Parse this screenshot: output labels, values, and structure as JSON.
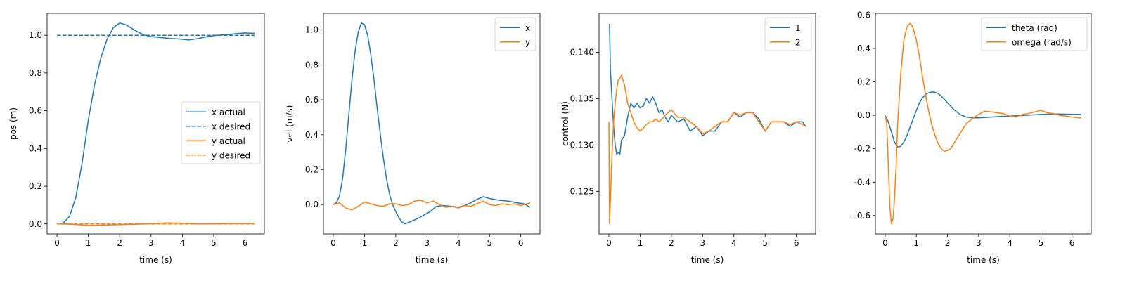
{
  "colors": {
    "blue": "#1f77b4",
    "orange": "#ff7f0e"
  },
  "chart_data": [
    {
      "type": "line",
      "xlabel": "time (s)",
      "ylabel": "pos (m)",
      "xlim": [
        -0.315,
        6.615
      ],
      "ylim": [
        -0.053,
        1.116
      ],
      "xticks": [
        0,
        1,
        2,
        3,
        4,
        5,
        6
      ],
      "yticks": [
        0.0,
        0.2,
        0.4,
        0.6,
        0.8,
        1.0
      ],
      "legend_position": "center-right",
      "series": [
        {
          "name": "x actual",
          "color": "#1f77b4",
          "dash": "solid",
          "x": [
            0,
            0.2,
            0.4,
            0.6,
            0.8,
            1.0,
            1.2,
            1.4,
            1.6,
            1.8,
            2.0,
            2.2,
            2.4,
            2.6,
            2.8,
            3.0,
            3.3,
            3.6,
            3.9,
            4.2,
            4.5,
            4.8,
            5.1,
            5.4,
            5.7,
            6.0,
            6.3
          ],
          "y": [
            0.0,
            0.005,
            0.04,
            0.14,
            0.32,
            0.55,
            0.74,
            0.88,
            0.98,
            1.04,
            1.065,
            1.055,
            1.035,
            1.015,
            1.0,
            0.993,
            0.988,
            0.983,
            0.98,
            0.975,
            0.982,
            0.993,
            1.0,
            1.003,
            1.008,
            1.012,
            1.01
          ]
        },
        {
          "name": "x desired",
          "color": "#1f77b4",
          "dash": "dashed",
          "x": [
            0,
            6.3
          ],
          "y": [
            1.0,
            1.0
          ]
        },
        {
          "name": "y actual",
          "color": "#ff7f0e",
          "dash": "solid",
          "x": [
            0,
            0.5,
            1.0,
            1.5,
            2.0,
            2.5,
            3.0,
            3.5,
            4.0,
            4.5,
            5.0,
            5.5,
            6.0,
            6.3
          ],
          "y": [
            0.0,
            -0.002,
            -0.008,
            -0.006,
            -0.004,
            -0.002,
            0.001,
            0.006,
            0.004,
            0.0,
            0.001,
            0.002,
            0.002,
            0.002
          ]
        },
        {
          "name": "y desired",
          "color": "#ff7f0e",
          "dash": "dashed",
          "x": [
            0,
            6.3
          ],
          "y": [
            0.0,
            0.0
          ]
        }
      ]
    },
    {
      "type": "line",
      "xlabel": "time (s)",
      "ylabel": "vel (m/s)",
      "xlim": [
        -0.315,
        6.615
      ],
      "ylim": [
        -0.168,
        1.095
      ],
      "xticks": [
        0,
        1,
        2,
        3,
        4,
        5,
        6
      ],
      "yticks": [
        0.0,
        0.2,
        0.4,
        0.6,
        0.8,
        1.0
      ],
      "legend_position": "top-right",
      "series": [
        {
          "name": "x",
          "color": "#1f77b4",
          "dash": "solid",
          "x": [
            0,
            0.1,
            0.2,
            0.3,
            0.4,
            0.5,
            0.6,
            0.7,
            0.8,
            0.9,
            1.0,
            1.1,
            1.2,
            1.3,
            1.4,
            1.5,
            1.6,
            1.7,
            1.8,
            1.9,
            2.0,
            2.1,
            2.2,
            2.3,
            2.5,
            2.7,
            2.9,
            3.1,
            3.3,
            3.5,
            3.8,
            4.0,
            4.2,
            4.4,
            4.6,
            4.8,
            5.0,
            5.3,
            5.6,
            5.9,
            6.1,
            6.3
          ],
          "y": [
            0.0,
            0.01,
            0.05,
            0.15,
            0.32,
            0.52,
            0.72,
            0.88,
            0.99,
            1.04,
            1.03,
            0.97,
            0.86,
            0.72,
            0.56,
            0.41,
            0.27,
            0.15,
            0.06,
            0.0,
            -0.04,
            -0.075,
            -0.1,
            -0.11,
            -0.095,
            -0.08,
            -0.06,
            -0.04,
            -0.01,
            -0.005,
            -0.01,
            -0.015,
            -0.005,
            0.01,
            0.03,
            0.045,
            0.035,
            0.025,
            0.02,
            0.01,
            0.005,
            -0.015
          ]
        },
        {
          "name": "y",
          "color": "#ff7f0e",
          "dash": "solid",
          "x": [
            0,
            0.2,
            0.4,
            0.6,
            0.8,
            1.0,
            1.2,
            1.4,
            1.6,
            1.8,
            2.0,
            2.2,
            2.4,
            2.6,
            2.8,
            3.0,
            3.2,
            3.4,
            3.6,
            3.8,
            4.0,
            4.2,
            4.4,
            4.6,
            4.8,
            5.0,
            5.2,
            5.4,
            5.6,
            5.8,
            6.0,
            6.3
          ],
          "y": [
            0.0,
            0.01,
            -0.02,
            -0.03,
            -0.01,
            0.015,
            0.005,
            -0.005,
            -0.01,
            0.005,
            0.005,
            -0.005,
            0.0,
            0.02,
            0.025,
            0.01,
            0.02,
            0.0,
            -0.015,
            -0.01,
            -0.02,
            -0.005,
            -0.01,
            0.005,
            0.02,
            0.0,
            -0.005,
            0.005,
            0.0,
            0.005,
            -0.005,
            0.01
          ]
        }
      ]
    },
    {
      "type": "line",
      "xlabel": "time (s)",
      "ylabel": "control (N)",
      "xlim": [
        -0.315,
        6.615
      ],
      "ylim": [
        0.1204,
        0.1442
      ],
      "xticks": [
        0,
        1,
        2,
        3,
        4,
        5,
        6
      ],
      "yticks": [
        0.125,
        0.13,
        0.135,
        0.14
      ],
      "legend_position": "top-right",
      "series": [
        {
          "name": "1",
          "color": "#1f77b4",
          "dash": "solid",
          "x": [
            0,
            0.02,
            0.05,
            0.1,
            0.15,
            0.2,
            0.25,
            0.3,
            0.35,
            0.4,
            0.5,
            0.6,
            0.7,
            0.8,
            0.9,
            1.0,
            1.1,
            1.2,
            1.3,
            1.4,
            1.5,
            1.6,
            1.7,
            1.8,
            1.9,
            2.0,
            2.2,
            2.4,
            2.6,
            2.8,
            3.0,
            3.2,
            3.4,
            3.6,
            3.8,
            4.0,
            4.2,
            4.4,
            4.6,
            4.8,
            5.0,
            5.2,
            5.4,
            5.6,
            5.8,
            6.0,
            6.2,
            6.3
          ],
          "y": [
            0.143,
            0.143,
            0.138,
            0.135,
            0.132,
            0.13,
            0.129,
            0.1292,
            0.129,
            0.1305,
            0.131,
            0.133,
            0.1345,
            0.134,
            0.1345,
            0.134,
            0.1342,
            0.135,
            0.1345,
            0.1352,
            0.1345,
            0.1335,
            0.1338,
            0.133,
            0.1325,
            0.1332,
            0.1325,
            0.1328,
            0.1315,
            0.132,
            0.131,
            0.1315,
            0.1315,
            0.1325,
            0.1325,
            0.1335,
            0.133,
            0.1335,
            0.1335,
            0.1328,
            0.1315,
            0.1325,
            0.1325,
            0.1325,
            0.132,
            0.1325,
            0.1325,
            0.132
          ]
        },
        {
          "name": "2",
          "color": "#ff7f0e",
          "dash": "solid",
          "x": [
            0,
            0.02,
            0.05,
            0.1,
            0.15,
            0.2,
            0.25,
            0.3,
            0.35,
            0.4,
            0.45,
            0.5,
            0.6,
            0.7,
            0.8,
            0.9,
            1.0,
            1.1,
            1.2,
            1.3,
            1.4,
            1.5,
            1.6,
            1.7,
            1.8,
            1.9,
            2.0,
            2.2,
            2.4,
            2.6,
            2.8,
            3.0,
            3.2,
            3.4,
            3.6,
            3.8,
            4.0,
            4.2,
            4.4,
            4.6,
            4.8,
            5.0,
            5.2,
            5.4,
            5.6,
            5.8,
            6.0,
            6.2,
            6.3
          ],
          "y": [
            0.1325,
            0.1215,
            0.124,
            0.129,
            0.1325,
            0.1345,
            0.136,
            0.137,
            0.1372,
            0.1375,
            0.137,
            0.1365,
            0.1345,
            0.1335,
            0.1325,
            0.1318,
            0.1315,
            0.1318,
            0.1322,
            0.1325,
            0.1325,
            0.1328,
            0.1325,
            0.1328,
            0.1332,
            0.1335,
            0.1338,
            0.133,
            0.133,
            0.1325,
            0.132,
            0.1312,
            0.1315,
            0.132,
            0.1325,
            0.1325,
            0.1335,
            0.1332,
            0.1335,
            0.1335,
            0.1325,
            0.1315,
            0.1325,
            0.1325,
            0.1325,
            0.1322,
            0.1325,
            0.1322,
            0.132
          ]
        }
      ]
    },
    {
      "type": "line",
      "xlabel": "time (s)",
      "ylabel": "",
      "xlim": [
        -0.315,
        6.615
      ],
      "ylim": [
        -0.71,
        0.61
      ],
      "xticks": [
        0,
        1,
        2,
        3,
        4,
        5,
        6
      ],
      "yticks": [
        -0.6,
        -0.4,
        -0.2,
        0.0,
        0.2,
        0.4,
        0.6
      ],
      "legend_position": "top-right",
      "series": [
        {
          "name": "theta (rad)",
          "color": "#1f77b4",
          "dash": "solid",
          "x": [
            0,
            0.1,
            0.2,
            0.3,
            0.4,
            0.5,
            0.6,
            0.7,
            0.8,
            0.9,
            1.0,
            1.1,
            1.2,
            1.3,
            1.4,
            1.5,
            1.6,
            1.7,
            1.8,
            1.9,
            2.0,
            2.2,
            2.4,
            2.6,
            2.8,
            3.0,
            3.3,
            3.6,
            4.0,
            4.5,
            5.0,
            5.5,
            6.0,
            6.3
          ],
          "y": [
            0.0,
            -0.04,
            -0.1,
            -0.16,
            -0.19,
            -0.185,
            -0.16,
            -0.12,
            -0.07,
            -0.02,
            0.03,
            0.075,
            0.105,
            0.125,
            0.135,
            0.14,
            0.138,
            0.13,
            0.115,
            0.095,
            0.075,
            0.035,
            0.005,
            -0.01,
            -0.015,
            -0.015,
            -0.012,
            -0.008,
            -0.005,
            0.0,
            0.005,
            0.008,
            0.006,
            0.005
          ]
        },
        {
          "name": "omega (rad/s)",
          "color": "#ff7f0e",
          "dash": "solid",
          "x": [
            0,
            0.05,
            0.1,
            0.15,
            0.2,
            0.25,
            0.3,
            0.35,
            0.4,
            0.5,
            0.6,
            0.7,
            0.8,
            0.85,
            0.9,
            1.0,
            1.1,
            1.2,
            1.3,
            1.4,
            1.5,
            1.6,
            1.7,
            1.8,
            1.9,
            2.0,
            2.1,
            2.2,
            2.3,
            2.4,
            2.5,
            2.6,
            2.8,
            3.0,
            3.2,
            3.4,
            3.6,
            3.8,
            4.0,
            4.2,
            4.4,
            4.6,
            4.8,
            5.0,
            5.2,
            5.4,
            5.6,
            5.8,
            6.0,
            6.2,
            6.3
          ],
          "y": [
            0.0,
            -0.05,
            -0.3,
            -0.55,
            -0.65,
            -0.62,
            -0.5,
            -0.3,
            -0.05,
            0.25,
            0.45,
            0.53,
            0.55,
            0.54,
            0.52,
            0.45,
            0.35,
            0.23,
            0.12,
            0.02,
            -0.06,
            -0.12,
            -0.17,
            -0.2,
            -0.215,
            -0.21,
            -0.2,
            -0.17,
            -0.14,
            -0.11,
            -0.08,
            -0.05,
            -0.02,
            0.005,
            0.025,
            0.02,
            0.015,
            0.01,
            -0.005,
            -0.01,
            0.005,
            0.01,
            0.02,
            0.03,
            0.015,
            0.01,
            0.0,
            -0.005,
            -0.01,
            -0.015,
            -0.015
          ]
        }
      ]
    }
  ]
}
